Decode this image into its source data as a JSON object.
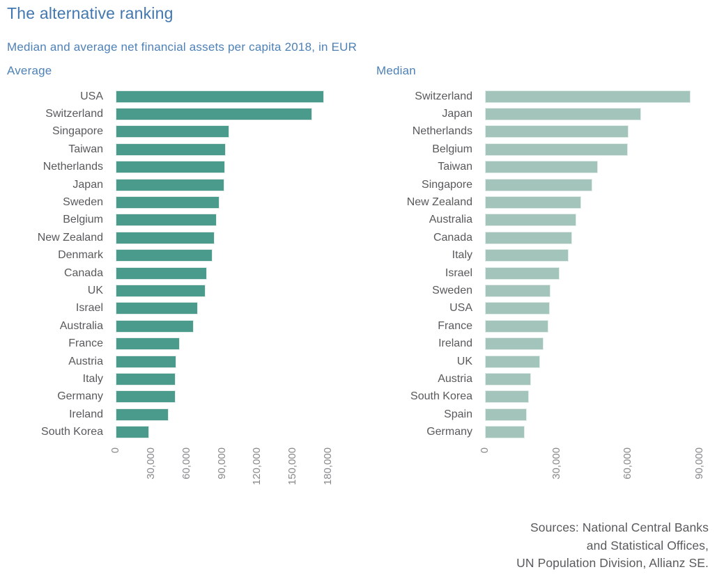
{
  "header": {
    "title": "The alternative ranking",
    "subtitle": "Median and average net financial assets per capita 2018, in EUR"
  },
  "colors": {
    "average_bar": "#4a9b8b",
    "median_bar": "#a2c4ba",
    "heading_blue": "#4277af",
    "label_gray": "#58595b",
    "tick_gray": "#88898b"
  },
  "chart_data": [
    {
      "type": "bar",
      "orientation": "horizontal",
      "title": "Average",
      "unit": "EUR",
      "grid": false,
      "legend": "none",
      "bar_color": "#4a9b8b",
      "xlim": [
        0,
        180000
      ],
      "xticks": [
        0,
        30000,
        60000,
        90000,
        120000,
        150000,
        180000
      ],
      "xtick_labels": [
        "0",
        "30,000",
        "60,000",
        "90,000",
        "120,000",
        "150,000",
        "180,000"
      ],
      "categories": [
        "USA",
        "Switzerland",
        "Singapore",
        "Taiwan",
        "Netherlands",
        "Japan",
        "Sweden",
        "Belgium",
        "New Zealand",
        "Denmark",
        "Canada",
        "UK",
        "Israel",
        "Australia",
        "France",
        "Austria",
        "Italy",
        "Germany",
        "Ireland",
        "South Korea"
      ],
      "values": [
        176500,
        166300,
        96000,
        93500,
        92900,
        91900,
        88000,
        85400,
        83700,
        81900,
        77100,
        76200,
        69800,
        65800,
        54400,
        51400,
        50800,
        50500,
        44800,
        28300
      ]
    },
    {
      "type": "bar",
      "orientation": "horizontal",
      "title": "Median",
      "unit": "EUR",
      "grid": false,
      "legend": "none",
      "bar_color": "#a2c4ba",
      "xlim": [
        0,
        90000
      ],
      "xticks": [
        0,
        30000,
        60000,
        90000
      ],
      "xtick_labels": [
        "0",
        "30,000",
        "60,000",
        "90,000"
      ],
      "categories": [
        "Switzerland",
        "Japan",
        "Netherlands",
        "Belgium",
        "Taiwan",
        "Singapore",
        "New Zealand",
        "Australia",
        "Canada",
        "Italy",
        "Israel",
        "Sweden",
        "USA",
        "France",
        "Ireland",
        "UK",
        "Austria",
        "South Korea",
        "Spain",
        "Germany"
      ],
      "values": [
        86400,
        65500,
        60400,
        59900,
        47300,
        45000,
        40400,
        38400,
        36700,
        35000,
        31200,
        27600,
        27100,
        26600,
        24600,
        23000,
        19200,
        18400,
        17500,
        16700
      ]
    }
  ],
  "footer": {
    "sources_lines": [
      "Sources: National Central Banks",
      "and Statistical Offices,",
      "UN Population Division, Allianz SE."
    ]
  }
}
